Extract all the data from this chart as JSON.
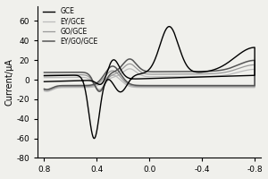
{
  "title": "",
  "xlabel": "",
  "ylabel": "Current/μA",
  "xlim": [
    0.85,
    -0.85
  ],
  "ylim": [
    -80,
    75
  ],
  "yticks": [
    -80,
    -60,
    -40,
    -20,
    0,
    20,
    40,
    60
  ],
  "xticks": [
    0.8,
    0.4,
    0.0,
    -0.4,
    -0.8
  ],
  "legend_labels": [
    "GCE",
    "EY/GCE",
    "GO/GCE",
    "EY/GO/GCE"
  ],
  "colors": [
    "#000000",
    "#bbbbbb",
    "#999999",
    "#555555"
  ],
  "linewidths": [
    1.0,
    0.9,
    0.9,
    1.1
  ],
  "background": "#f0f0ec"
}
